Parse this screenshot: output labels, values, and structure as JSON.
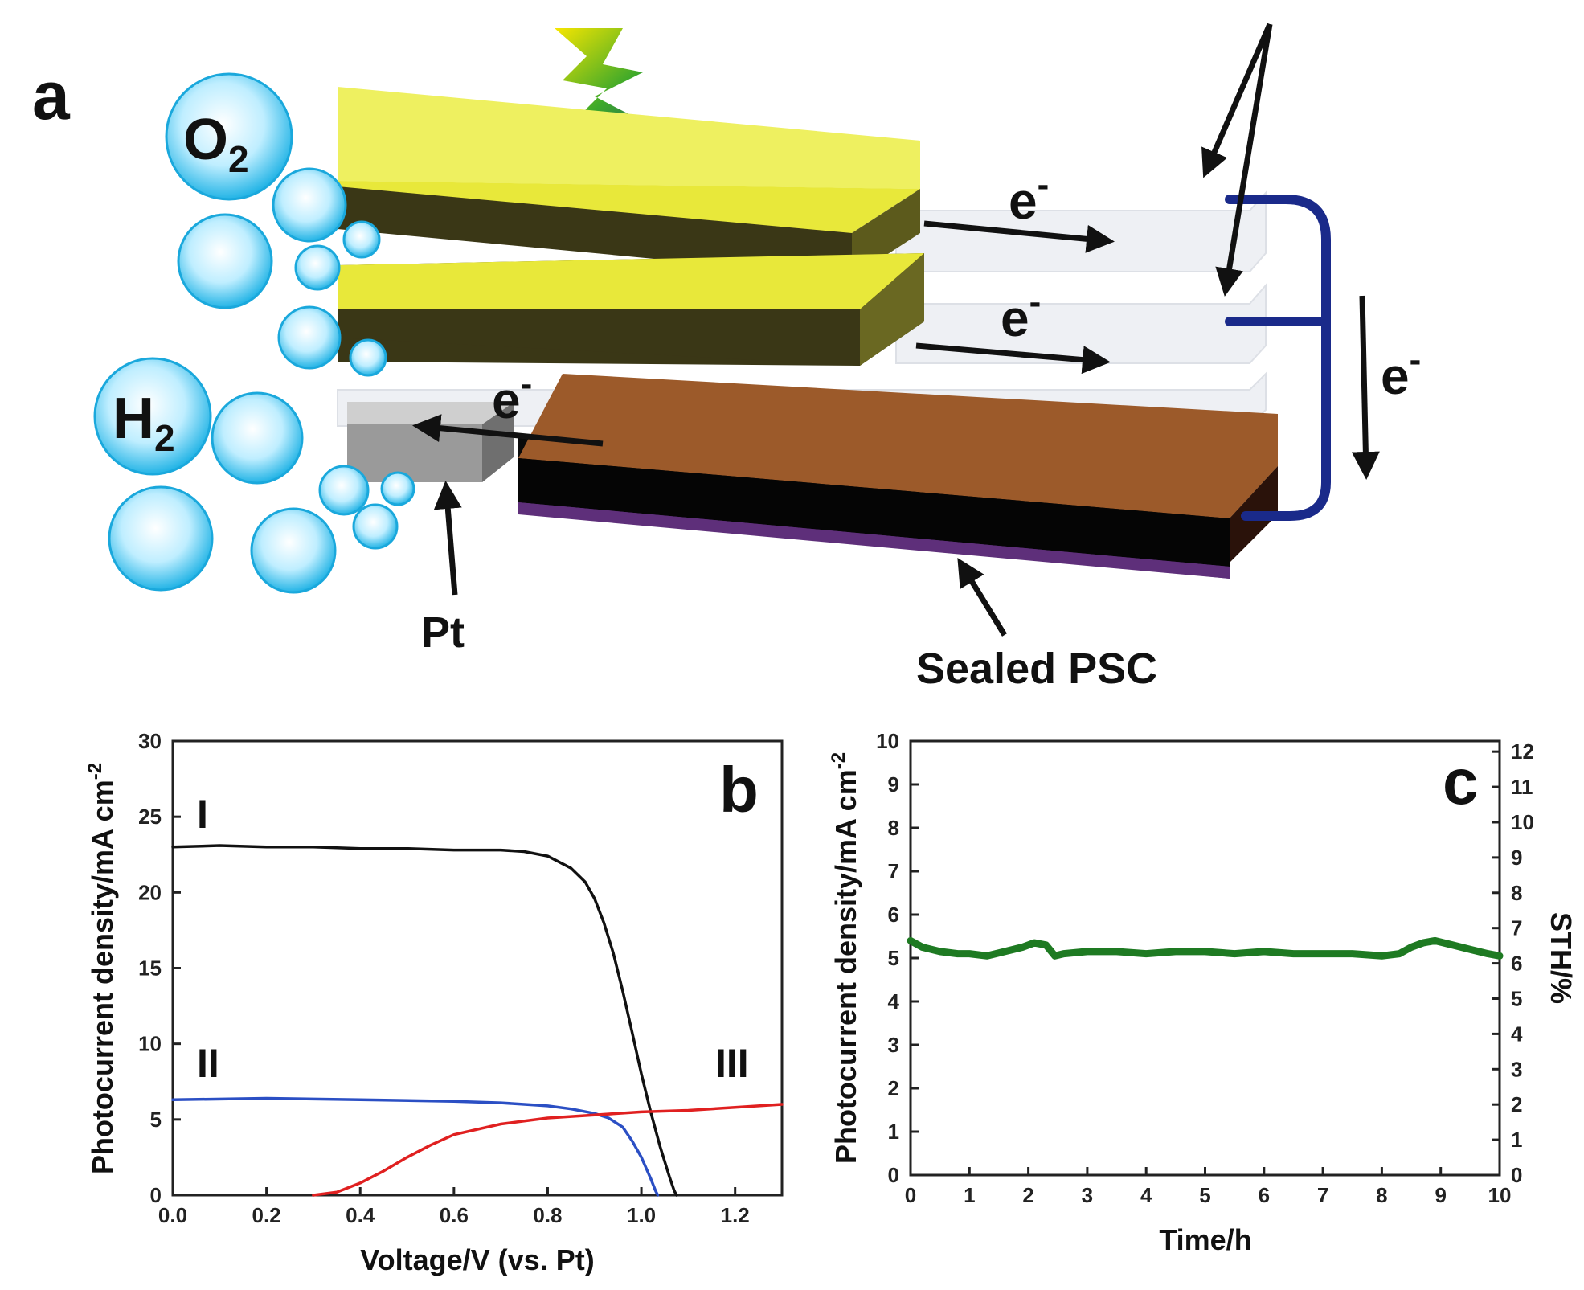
{
  "panel_a": {
    "letter": "a",
    "o2_label": "O",
    "o2_sub": "2",
    "h2_label": "H",
    "h2_sub": "2",
    "electron": "e",
    "electron_sup": "-",
    "pt_label": "Pt",
    "psc_label": "Sealed PSC"
  },
  "chart_data": [
    {
      "type": "line",
      "panel_letter": "b",
      "xlabel": "Voltage/V (vs. Pt)",
      "ylabel": "Photocurrent density/mA cm",
      "ylabel_sup": "-2",
      "xlim": [
        0,
        1.3
      ],
      "ylim": [
        0,
        30
      ],
      "xticks": [
        "0.0",
        "0.2",
        "0.4",
        "0.6",
        "0.8",
        "1.0",
        "1.2"
      ],
      "yticks": [
        "0",
        "5",
        "10",
        "15",
        "20",
        "25",
        "30"
      ],
      "series": [
        {
          "name": "I",
          "color": "#111111",
          "x": [
            0,
            0.1,
            0.2,
            0.3,
            0.4,
            0.5,
            0.6,
            0.7,
            0.75,
            0.8,
            0.85,
            0.88,
            0.9,
            0.92,
            0.94,
            0.96,
            0.98,
            1.0,
            1.02,
            1.04,
            1.06,
            1.07,
            1.075
          ],
          "y": [
            23.0,
            23.1,
            23.0,
            23.0,
            22.9,
            22.9,
            22.8,
            22.8,
            22.7,
            22.4,
            21.6,
            20.7,
            19.6,
            18.0,
            16.0,
            13.5,
            10.8,
            8.0,
            5.5,
            3.2,
            1.2,
            0.3,
            0
          ]
        },
        {
          "name": "II",
          "color": "#2b4fc4",
          "x": [
            0,
            0.2,
            0.4,
            0.6,
            0.7,
            0.8,
            0.85,
            0.9,
            0.93,
            0.96,
            0.98,
            1.0,
            1.02,
            1.03,
            1.035
          ],
          "y": [
            6.3,
            6.4,
            6.3,
            6.2,
            6.1,
            5.9,
            5.7,
            5.4,
            5.1,
            4.5,
            3.6,
            2.5,
            1.1,
            0.3,
            0
          ]
        },
        {
          "name": "III",
          "color": "#e02020",
          "x": [
            0.3,
            0.35,
            0.4,
            0.45,
            0.5,
            0.55,
            0.6,
            0.7,
            0.8,
            0.9,
            1.0,
            1.1,
            1.2,
            1.3
          ],
          "y": [
            0,
            0.2,
            0.8,
            1.6,
            2.5,
            3.3,
            4.0,
            4.7,
            5.1,
            5.3,
            5.5,
            5.6,
            5.8,
            6.0
          ]
        }
      ]
    },
    {
      "type": "line",
      "panel_letter": "c",
      "xlabel": "Time/h",
      "ylabel": "Photocurrent density/mA cm",
      "ylabel_sup": "-2",
      "ylabel_right": "STH/%",
      "xlim": [
        0,
        10
      ],
      "ylim": [
        0,
        10
      ],
      "ylim_right": [
        0,
        12.3
      ],
      "xticks": [
        "0",
        "1",
        "2",
        "3",
        "4",
        "5",
        "6",
        "7",
        "8",
        "9",
        "10"
      ],
      "yticks": [
        "0",
        "1",
        "2",
        "3",
        "4",
        "5",
        "6",
        "7",
        "8",
        "9",
        "10"
      ],
      "yticks_right": [
        "0",
        "1",
        "2",
        "3",
        "4",
        "5",
        "6",
        "7",
        "8",
        "9",
        "10",
        "11",
        "12"
      ],
      "series": [
        {
          "color": "#1e7a22",
          "x": [
            0,
            0.2,
            0.5,
            0.8,
            1.0,
            1.3,
            1.6,
            1.9,
            2.1,
            2.3,
            2.45,
            2.6,
            3.0,
            3.5,
            4.0,
            4.5,
            5.0,
            5.5,
            6.0,
            6.5,
            7.0,
            7.5,
            8.0,
            8.3,
            8.5,
            8.7,
            8.9,
            9.2,
            9.5,
            9.8,
            10.0
          ],
          "y": [
            5.4,
            5.25,
            5.15,
            5.1,
            5.1,
            5.05,
            5.15,
            5.25,
            5.35,
            5.3,
            5.05,
            5.1,
            5.15,
            5.15,
            5.1,
            5.15,
            5.15,
            5.1,
            5.15,
            5.1,
            5.1,
            5.1,
            5.05,
            5.1,
            5.25,
            5.35,
            5.4,
            5.3,
            5.2,
            5.1,
            5.05
          ]
        }
      ]
    }
  ]
}
